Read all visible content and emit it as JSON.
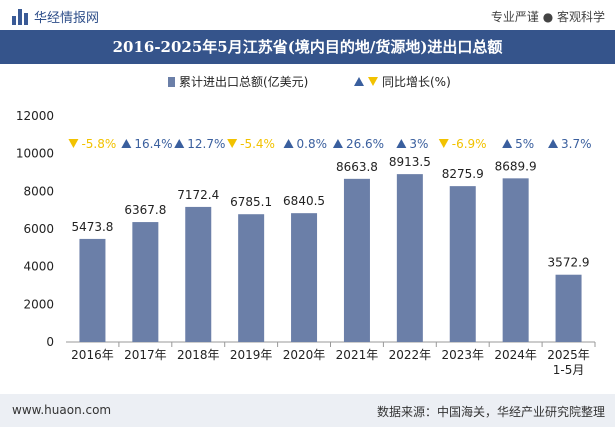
{
  "header": {
    "brand": "华经情报网",
    "tagline": "专业严谨 ● 客观科学"
  },
  "footer": {
    "website": "www.huaon.com",
    "source": "数据来源：中国海关，华经产业研究院整理"
  },
  "colors": {
    "bar": "#6b7fa8",
    "up": "#3a5f9e",
    "down": "#f2c200",
    "title_bg": "#35548b"
  },
  "chart_data": {
    "type": "bar",
    "title": "2016-2025年5月江苏省(境内目的地/货源地)进出口总额",
    "categories": [
      "2016年",
      "2017年",
      "2018年",
      "2019年",
      "2020年",
      "2021年",
      "2022年",
      "2023年",
      "2024年",
      "2025年\n1-5月"
    ],
    "series": [
      {
        "name": "累计进出口总额(亿美元)",
        "values": [
          5473.8,
          6367.8,
          7172.4,
          6785.1,
          6840.5,
          8663.8,
          8913.5,
          8275.9,
          8689.9,
          3572.9
        ]
      },
      {
        "name": "同比增长(%)",
        "values": [
          -5.8,
          16.4,
          12.7,
          -5.4,
          0.8,
          26.6,
          3,
          -6.9,
          5,
          3.7
        ],
        "labels": [
          "-5.8%",
          "16.4%",
          "12.7%",
          "-5.4%",
          "0.8%",
          "26.6%",
          "3%",
          "-6.9%",
          "5%",
          "3.7%"
        ]
      }
    ],
    "value_labels": [
      "5473.8",
      "6367.8",
      "7172.4",
      "6785.1",
      "6840.5",
      "8663.8",
      "8913.5",
      "8275.9",
      "8689.9",
      "3572.9"
    ],
    "yticks": [
      "0",
      "2000",
      "4000",
      "6000",
      "8000",
      "10000",
      "12000"
    ],
    "ylim": [
      0,
      12000
    ],
    "legend_position": "top-center",
    "grid": false
  }
}
